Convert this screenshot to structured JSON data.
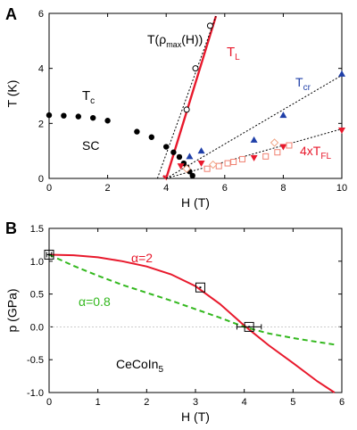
{
  "chart_data": [
    {
      "panel": "A",
      "type": "scatter",
      "xlabel": "H (T)",
      "ylabel": "T (K)",
      "xlim": [
        0,
        10
      ],
      "ylim": [
        0,
        6
      ],
      "xticks": [
        0,
        2,
        4,
        6,
        8,
        10
      ],
      "yticks": [
        0,
        2,
        4,
        6
      ],
      "annotations": {
        "tc": "T",
        "tc_sub": "c",
        "sc": "SC",
        "tl": "T",
        "tl_sub": "L",
        "tcr": "T",
        "tcr_sub": "cr",
        "tfl": "4xT",
        "tfl_sub": "FL",
        "trho_pre": "T(ρ",
        "trho_sub": "max",
        "trho_post": "(H))"
      },
      "colors": {
        "tc": "#000000",
        "tl": "#e8192c",
        "tcr": "#1f3fa8",
        "tfl": "#e8192c",
        "open": "#f08070"
      },
      "series": [
        {
          "key": "tc",
          "style": "filled-circle",
          "x": [
            0,
            0.5,
            1.0,
            1.5,
            2.0,
            3.0,
            3.5,
            4.0,
            4.25,
            4.45,
            4.6,
            4.7,
            4.8,
            4.9
          ],
          "y": [
            2.3,
            2.28,
            2.25,
            2.2,
            2.1,
            1.7,
            1.5,
            1.15,
            0.95,
            0.78,
            0.55,
            0.4,
            0.25,
            0.1
          ]
        },
        {
          "key": "trho",
          "style": "open-circle",
          "x": [
            4.7,
            5.0,
            5.5
          ],
          "y": [
            2.5,
            4.0,
            5.55
          ]
        },
        {
          "key": "tcr",
          "style": "filled-triangle-up",
          "x": [
            4.8,
            5.2,
            7.0,
            8.0,
            10.0
          ],
          "y": [
            0.8,
            1.0,
            1.4,
            2.3,
            3.8
          ]
        },
        {
          "key": "tfl",
          "style": "filled-triangle-down",
          "x": [
            4.5,
            5.2,
            7.0,
            8.0,
            10.0
          ],
          "y": [
            0.45,
            0.55,
            0.75,
            1.15,
            1.75
          ]
        },
        {
          "key": "tfl_open",
          "style": "open-square",
          "x": [
            5.4,
            5.8,
            6.1,
            6.3,
            6.6,
            7.4,
            7.8,
            8.2
          ],
          "y": [
            0.35,
            0.45,
            0.55,
            0.6,
            0.7,
            0.8,
            0.95,
            1.2
          ]
        },
        {
          "key": "tfl_diamond",
          "style": "open-diamond",
          "x": [
            4.7,
            5.6,
            7.7
          ],
          "y": [
            0.35,
            0.5,
            1.3
          ]
        }
      ],
      "lines": [
        {
          "key": "tl",
          "style": "solid-red",
          "x": [
            3.9,
            4.0,
            5.7
          ],
          "y": [
            0.1,
            0.0,
            5.9
          ]
        },
        {
          "key": "rho_fit",
          "style": "dotted",
          "x": [
            3.7,
            5.7
          ],
          "y": [
            0.0,
            5.9
          ]
        },
        {
          "key": "tcr_fit",
          "style": "dotted",
          "x": [
            4.0,
            10.0
          ],
          "y": [
            0.0,
            3.75
          ]
        },
        {
          "key": "tfl_fit",
          "style": "dotted",
          "x": [
            4.0,
            10.0
          ],
          "y": [
            0.0,
            1.8
          ]
        }
      ]
    },
    {
      "panel": "B",
      "type": "line",
      "xlabel": "H (T)",
      "ylabel": "p (GPa)",
      "xlim": [
        0,
        6
      ],
      "ylim": [
        -1.0,
        1.5
      ],
      "xticks": [
        0,
        1,
        2,
        3,
        4,
        5,
        6
      ],
      "yticks": [
        -1.0,
        -0.5,
        0.0,
        0.5,
        1.0,
        1.5
      ],
      "annotations": {
        "alpha2": "α=2",
        "alpha08": "α=0.8",
        "material": "CeCoIn",
        "material_sub": "5"
      },
      "colors": {
        "alpha2": "#e8192c",
        "alpha08": "#33b81e"
      },
      "series": [
        {
          "name": "α=2",
          "style": "solid-red",
          "x": [
            0,
            0.5,
            1.0,
            1.5,
            2.0,
            2.5,
            3.0,
            3.5,
            4.0,
            4.5,
            5.0,
            5.5,
            5.85
          ],
          "y": [
            1.1,
            1.09,
            1.06,
            1.0,
            0.92,
            0.8,
            0.62,
            0.35,
            0.02,
            -0.28,
            -0.55,
            -0.83,
            -1.0
          ]
        },
        {
          "name": "α=0.8",
          "style": "dashed-green",
          "x": [
            0,
            0.5,
            1.0,
            1.5,
            2.0,
            2.5,
            3.0,
            3.5,
            4.0,
            4.5,
            5.0,
            5.5,
            5.85
          ],
          "y": [
            1.1,
            0.93,
            0.78,
            0.64,
            0.52,
            0.4,
            0.27,
            0.14,
            0.0,
            -0.1,
            -0.17,
            -0.23,
            -0.27
          ]
        }
      ],
      "markers": [
        {
          "x": 0.0,
          "y": 1.1,
          "xerr": 0.05
        },
        {
          "x": 3.1,
          "y": 0.6,
          "xerr": 0.0
        },
        {
          "x": 4.1,
          "y": 0.0,
          "xerr": 0.25
        }
      ]
    }
  ],
  "panel_labels": {
    "a": "A",
    "b": "B"
  }
}
